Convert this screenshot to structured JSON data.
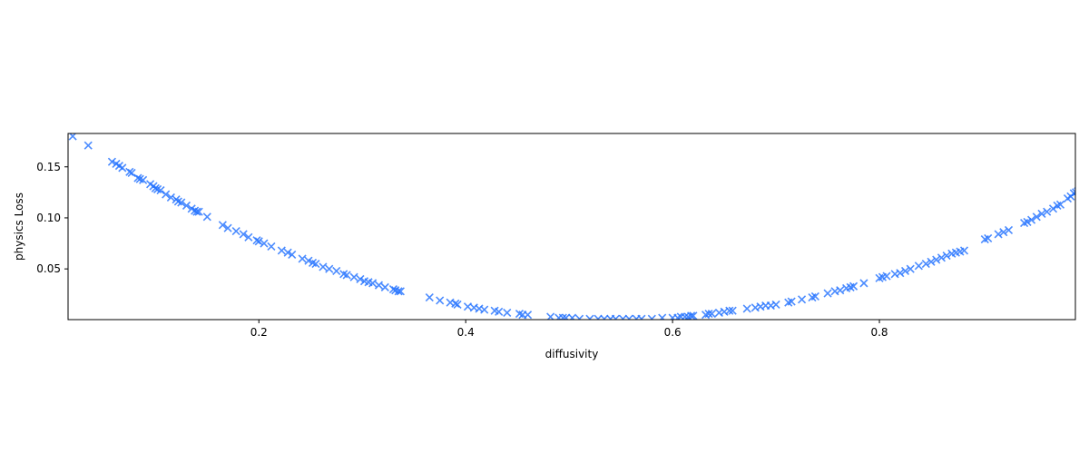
{
  "chart_data": {
    "type": "scatter",
    "title": "",
    "xlabel": "diffusivity",
    "ylabel": "physics Loss",
    "xlim": [
      0.0155,
      0.9895
    ],
    "ylim": [
      0.0003,
      0.1827
    ],
    "xticks": [
      0.2,
      0.4,
      0.6,
      0.8
    ],
    "xtick_labels": [
      "0.2",
      "0.4",
      "0.6",
      "0.8"
    ],
    "yticks": [
      0.05,
      0.1,
      0.15
    ],
    "ytick_labels": [
      "0.05",
      "0.10",
      "0.15"
    ],
    "grid": false,
    "marker": "x",
    "color": "#1f6fff",
    "series": [
      {
        "name": "physics loss",
        "points": [
          [
            0.02,
            0.18
          ],
          [
            0.035,
            0.171
          ],
          [
            0.058,
            0.155
          ],
          [
            0.062,
            0.153
          ],
          [
            0.065,
            0.151
          ],
          [
            0.068,
            0.149
          ],
          [
            0.075,
            0.145
          ],
          [
            0.077,
            0.144
          ],
          [
            0.083,
            0.139
          ],
          [
            0.085,
            0.138
          ],
          [
            0.088,
            0.137
          ],
          [
            0.095,
            0.133
          ],
          [
            0.098,
            0.131
          ],
          [
            0.1,
            0.129
          ],
          [
            0.102,
            0.128
          ],
          [
            0.105,
            0.127
          ],
          [
            0.11,
            0.123
          ],
          [
            0.115,
            0.12
          ],
          [
            0.12,
            0.118
          ],
          [
            0.122,
            0.116
          ],
          [
            0.125,
            0.115
          ],
          [
            0.13,
            0.112
          ],
          [
            0.135,
            0.109
          ],
          [
            0.138,
            0.107
          ],
          [
            0.14,
            0.106
          ],
          [
            0.142,
            0.106
          ],
          [
            0.15,
            0.101
          ],
          [
            0.165,
            0.093
          ],
          [
            0.17,
            0.09
          ],
          [
            0.178,
            0.087
          ],
          [
            0.185,
            0.084
          ],
          [
            0.19,
            0.081
          ],
          [
            0.198,
            0.078
          ],
          [
            0.2,
            0.077
          ],
          [
            0.205,
            0.075
          ],
          [
            0.212,
            0.072
          ],
          [
            0.222,
            0.068
          ],
          [
            0.228,
            0.066
          ],
          [
            0.232,
            0.064
          ],
          [
            0.242,
            0.06
          ],
          [
            0.248,
            0.058
          ],
          [
            0.252,
            0.056
          ],
          [
            0.255,
            0.055
          ],
          [
            0.262,
            0.052
          ],
          [
            0.268,
            0.05
          ],
          [
            0.275,
            0.048
          ],
          [
            0.282,
            0.045
          ],
          [
            0.285,
            0.044
          ],
          [
            0.292,
            0.042
          ],
          [
            0.298,
            0.04
          ],
          [
            0.302,
            0.038
          ],
          [
            0.306,
            0.037
          ],
          [
            0.31,
            0.036
          ],
          [
            0.316,
            0.034
          ],
          [
            0.322,
            0.032
          ],
          [
            0.33,
            0.03
          ],
          [
            0.332,
            0.029
          ],
          [
            0.335,
            0.028
          ],
          [
            0.337,
            0.028
          ],
          [
            0.365,
            0.022
          ],
          [
            0.375,
            0.019
          ],
          [
            0.385,
            0.017
          ],
          [
            0.39,
            0.016
          ],
          [
            0.392,
            0.015
          ],
          [
            0.402,
            0.013
          ],
          [
            0.408,
            0.012
          ],
          [
            0.413,
            0.011
          ],
          [
            0.418,
            0.01
          ],
          [
            0.428,
            0.009
          ],
          [
            0.432,
            0.008
          ],
          [
            0.44,
            0.007
          ],
          [
            0.452,
            0.006
          ],
          [
            0.455,
            0.005
          ],
          [
            0.46,
            0.005
          ],
          [
            0.482,
            0.003
          ],
          [
            0.49,
            0.002
          ],
          [
            0.494,
            0.002
          ],
          [
            0.497,
            0.002
          ],
          [
            0.503,
            0.002
          ],
          [
            0.51,
            0.001
          ],
          [
            0.52,
            0.001
          ],
          [
            0.528,
            0.001
          ],
          [
            0.534,
            0.001
          ],
          [
            0.54,
            0.001
          ],
          [
            0.545,
            0.001
          ],
          [
            0.552,
            0.001
          ],
          [
            0.558,
            0.001
          ],
          [
            0.565,
            0.001
          ],
          [
            0.57,
            0.001
          ],
          [
            0.58,
            0.001
          ],
          [
            0.59,
            0.002
          ],
          [
            0.6,
            0.002
          ],
          [
            0.605,
            0.002
          ],
          [
            0.608,
            0.003
          ],
          [
            0.612,
            0.003
          ],
          [
            0.615,
            0.003
          ],
          [
            0.618,
            0.004
          ],
          [
            0.62,
            0.004
          ],
          [
            0.632,
            0.005
          ],
          [
            0.635,
            0.006
          ],
          [
            0.638,
            0.006
          ],
          [
            0.645,
            0.007
          ],
          [
            0.65,
            0.008
          ],
          [
            0.655,
            0.009
          ],
          [
            0.658,
            0.009
          ],
          [
            0.672,
            0.011
          ],
          [
            0.68,
            0.012
          ],
          [
            0.685,
            0.013
          ],
          [
            0.69,
            0.014
          ],
          [
            0.695,
            0.014
          ],
          [
            0.7,
            0.015
          ],
          [
            0.712,
            0.017
          ],
          [
            0.715,
            0.018
          ],
          [
            0.725,
            0.02
          ],
          [
            0.735,
            0.022
          ],
          [
            0.738,
            0.023
          ],
          [
            0.75,
            0.026
          ],
          [
            0.757,
            0.028
          ],
          [
            0.762,
            0.029
          ],
          [
            0.768,
            0.031
          ],
          [
            0.772,
            0.032
          ],
          [
            0.775,
            0.033
          ],
          [
            0.785,
            0.036
          ],
          [
            0.8,
            0.041
          ],
          [
            0.803,
            0.042
          ],
          [
            0.807,
            0.043
          ],
          [
            0.815,
            0.045
          ],
          [
            0.82,
            0.046
          ],
          [
            0.825,
            0.048
          ],
          [
            0.83,
            0.05
          ],
          [
            0.838,
            0.053
          ],
          [
            0.845,
            0.055
          ],
          [
            0.85,
            0.057
          ],
          [
            0.855,
            0.059
          ],
          [
            0.86,
            0.061
          ],
          [
            0.865,
            0.063
          ],
          [
            0.87,
            0.065
          ],
          [
            0.874,
            0.066
          ],
          [
            0.878,
            0.067
          ],
          [
            0.882,
            0.068
          ],
          [
            0.902,
            0.079
          ],
          [
            0.905,
            0.08
          ],
          [
            0.915,
            0.084
          ],
          [
            0.92,
            0.086
          ],
          [
            0.925,
            0.088
          ],
          [
            0.94,
            0.095
          ],
          [
            0.943,
            0.096
          ],
          [
            0.947,
            0.098
          ],
          [
            0.952,
            0.101
          ],
          [
            0.957,
            0.104
          ],
          [
            0.962,
            0.106
          ],
          [
            0.968,
            0.109
          ],
          [
            0.972,
            0.112
          ],
          [
            0.975,
            0.113
          ],
          [
            0.982,
            0.119
          ],
          [
            0.985,
            0.121
          ],
          [
            0.988,
            0.124
          ],
          [
            0.99,
            0.125
          ],
          [
            0.992,
            0.126
          ],
          [
            0.995,
            0.128
          ]
        ]
      }
    ]
  }
}
